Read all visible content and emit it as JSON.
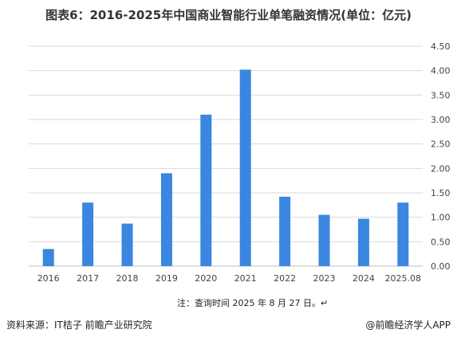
{
  "title": "图表6：2016-2025年中国商业智能行业单笔融资情况(单位：亿元)",
  "note": "注：查询时间 2025 年 8 月 27 日。↵",
  "source": "资料来源：IT桔子 前瞻产业研究院",
  "brand": "@前瞻经济学人APP",
  "colors": {
    "bar": "#3a86e0",
    "grid": "#d9d9d9",
    "axis": "#bfbfbf"
  },
  "chart_data": {
    "type": "bar",
    "title": "图表6：2016-2025年中国商业智能行业单笔融资情况(单位：亿元)",
    "categories": [
      "2016",
      "2017",
      "2018",
      "2019",
      "2020",
      "2021",
      "2022",
      "2023",
      "2024",
      "2025.08"
    ],
    "values": [
      0.35,
      1.3,
      0.87,
      1.9,
      3.1,
      4.02,
      1.42,
      1.05,
      0.97,
      1.3
    ],
    "xlabel": "",
    "ylabel": "",
    "ylim": [
      0,
      4.5
    ],
    "yticks": [
      "0.00",
      "0.50",
      "1.00",
      "1.50",
      "2.00",
      "2.50",
      "3.00",
      "3.50",
      "4.00",
      "4.50"
    ],
    "y_axis_side": "right",
    "grid": true,
    "legend": "none"
  }
}
